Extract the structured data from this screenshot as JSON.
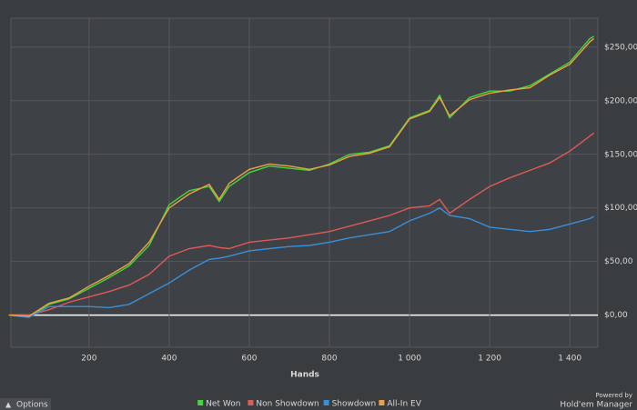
{
  "chart_data": {
    "type": "line",
    "xlabel": "Hands",
    "x": [
      0,
      50,
      100,
      150,
      200,
      250,
      300,
      350,
      400,
      450,
      500,
      525,
      550,
      600,
      650,
      700,
      750,
      800,
      850,
      900,
      950,
      1000,
      1050,
      1075,
      1100,
      1150,
      1200,
      1250,
      1300,
      1350,
      1400,
      1450,
      1460
    ],
    "series": [
      {
        "name": "Net Won",
        "color": "#41d83c",
        "values": [
          0,
          -2,
          10,
          15,
          25,
          35,
          46,
          65,
          103,
          116,
          120,
          106,
          120,
          133,
          139,
          137,
          135,
          141,
          150,
          152,
          158,
          184,
          191,
          205,
          184,
          203,
          209,
          209,
          214,
          225,
          236,
          258,
          260
        ]
      },
      {
        "name": "Non Showdown",
        "color": "#e05a58",
        "values": [
          0,
          0,
          5,
          12,
          17,
          22,
          28,
          38,
          55,
          62,
          65,
          63,
          62,
          68,
          70,
          72,
          75,
          78,
          83,
          88,
          93,
          100,
          102,
          108,
          95,
          108,
          120,
          128,
          135,
          142,
          153,
          167,
          170
        ]
      },
      {
        "name": "Showdown",
        "color": "#3b8fd8",
        "values": [
          0,
          -2,
          8,
          8,
          8,
          7,
          10,
          20,
          30,
          42,
          52,
          53,
          55,
          60,
          62,
          64,
          65,
          68,
          72,
          75,
          78,
          88,
          95,
          100,
          93,
          90,
          82,
          80,
          78,
          80,
          85,
          90,
          92
        ]
      },
      {
        "name": "All-In EV",
        "color": "#f0a043",
        "values": [
          0,
          -1,
          11,
          16,
          27,
          37,
          48,
          68,
          100,
          113,
          122,
          108,
          123,
          136,
          141,
          139,
          136,
          140,
          148,
          151,
          157,
          183,
          190,
          203,
          186,
          201,
          207,
          210,
          212,
          224,
          234,
          255,
          258
        ]
      }
    ],
    "xlim": [
      5,
      1470
    ],
    "ylim": [
      -30,
      277
    ],
    "xticks": [
      200,
      400,
      600,
      800,
      {
        "value": 1000,
        "label": "1 000"
      },
      {
        "value": 1200,
        "label": "1 200"
      },
      {
        "value": 1400,
        "label": "1 400"
      }
    ],
    "yticks": [
      {
        "value": 0,
        "label": "$0,00"
      },
      {
        "value": 50,
        "label": "$50,00"
      },
      {
        "value": 100,
        "label": "$100,00"
      },
      {
        "value": 150,
        "label": "$150,00"
      },
      {
        "value": 200,
        "label": "$200,00"
      },
      {
        "value": 250,
        "label": "$250,00"
      }
    ],
    "grid": true,
    "legend": "bottom"
  },
  "ui": {
    "options_button": "Options",
    "powered_by": "Powered by",
    "brand": "Hold'em Manager"
  }
}
